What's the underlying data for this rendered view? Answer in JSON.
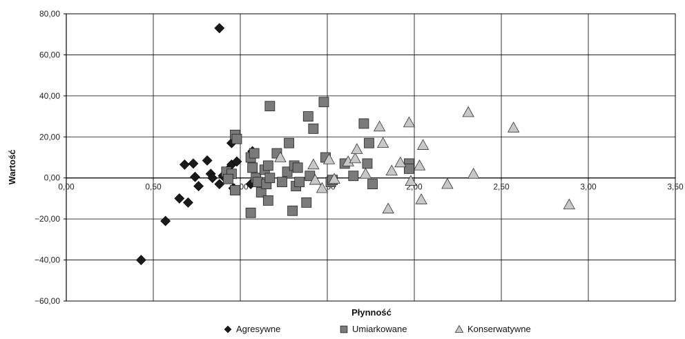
{
  "chart_data": {
    "type": "scatter",
    "xlabel": "Płynność",
    "ylabel": "Wartość",
    "xlim": [
      0,
      3.5
    ],
    "ylim": [
      -60,
      80
    ],
    "x_ticks": [
      "0,00",
      "0,50",
      "1,00",
      "1,50",
      "2,00",
      "2,50",
      "3,00",
      "3,50"
    ],
    "y_ticks": [
      "80,00",
      "60,00",
      "40,00",
      "20,00",
      "0,00",
      "−20,00",
      "−40,00",
      "−60,00"
    ],
    "grid": true,
    "legend_position": "bottom",
    "series": [
      {
        "name": "Agresywne",
        "marker": "diamond",
        "color": "#1a1a1a",
        "points": [
          [
            0.88,
            73
          ],
          [
            0.43,
            -40
          ],
          [
            0.57,
            -21
          ],
          [
            0.65,
            -10
          ],
          [
            0.7,
            -12
          ],
          [
            0.68,
            6.5
          ],
          [
            0.73,
            7
          ],
          [
            0.74,
            0.5
          ],
          [
            0.76,
            -4
          ],
          [
            0.81,
            8.5
          ],
          [
            0.83,
            2
          ],
          [
            0.84,
            0
          ],
          [
            0.88,
            -3
          ],
          [
            0.9,
            1
          ],
          [
            0.93,
            4
          ],
          [
            0.95,
            6.5
          ],
          [
            0.95,
            17
          ],
          [
            0.96,
            -5
          ],
          [
            0.98,
            8
          ],
          [
            1.07,
            13
          ],
          [
            1.06,
            -3
          ],
          [
            1.09,
            -2
          ]
        ]
      },
      {
        "name": "Umiarkowane",
        "marker": "square",
        "color": "#7a7a7a",
        "points": [
          [
            0.97,
            21
          ],
          [
            0.98,
            19
          ],
          [
            0.97,
            -6
          ],
          [
            0.92,
            3
          ],
          [
            0.95,
            2
          ],
          [
            0.93,
            -0.5
          ],
          [
            1.06,
            -17
          ],
          [
            1.06,
            10
          ],
          [
            1.08,
            12
          ],
          [
            1.07,
            5
          ],
          [
            1.09,
            0
          ],
          [
            1.1,
            -2
          ],
          [
            1.12,
            -7
          ],
          [
            1.14,
            4
          ],
          [
            1.15,
            -3
          ],
          [
            1.16,
            6
          ],
          [
            1.17,
            0
          ],
          [
            1.16,
            -11
          ],
          [
            1.17,
            35
          ],
          [
            1.21,
            12
          ],
          [
            1.24,
            -2
          ],
          [
            1.27,
            3
          ],
          [
            1.28,
            17
          ],
          [
            1.3,
            -16
          ],
          [
            1.31,
            6
          ],
          [
            1.32,
            -4
          ],
          [
            1.33,
            5
          ],
          [
            1.34,
            -2
          ],
          [
            1.38,
            -12
          ],
          [
            1.39,
            30
          ],
          [
            1.4,
            1
          ],
          [
            1.42,
            24
          ],
          [
            1.48,
            37
          ],
          [
            1.49,
            10
          ],
          [
            1.52,
            -2
          ],
          [
            1.53,
            -1
          ],
          [
            1.6,
            7
          ],
          [
            1.65,
            1
          ],
          [
            1.71,
            26.5
          ],
          [
            1.73,
            7
          ],
          [
            1.74,
            17
          ],
          [
            1.76,
            -3
          ],
          [
            1.97,
            7
          ],
          [
            1.97,
            4.5
          ]
        ]
      },
      {
        "name": "Konserwatywne",
        "marker": "triangle",
        "color": "#c8c8c8",
        "points": [
          [
            1.23,
            10
          ],
          [
            1.42,
            6.5
          ],
          [
            1.43,
            -1
          ],
          [
            1.47,
            -5
          ],
          [
            1.51,
            9
          ],
          [
            1.54,
            -0.5
          ],
          [
            1.62,
            8
          ],
          [
            1.66,
            9.5
          ],
          [
            1.67,
            14
          ],
          [
            1.72,
            2
          ],
          [
            1.8,
            25
          ],
          [
            1.82,
            17
          ],
          [
            1.85,
            -15
          ],
          [
            1.87,
            3.5
          ],
          [
            1.92,
            7.5
          ],
          [
            1.97,
            27
          ],
          [
            1.98,
            -1.5
          ],
          [
            2.03,
            6
          ],
          [
            2.04,
            -10.5
          ],
          [
            2.05,
            16
          ],
          [
            2.19,
            -3
          ],
          [
            2.31,
            32
          ],
          [
            2.34,
            2
          ],
          [
            2.57,
            24.5
          ],
          [
            2.89,
            -13
          ]
        ]
      }
    ]
  }
}
